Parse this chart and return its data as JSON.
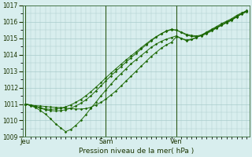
{
  "bg_color": "#d8eeee",
  "grid_color": "#aacccc",
  "line_color": "#1a6600",
  "marker_color": "#1a6600",
  "xlabel": "Pression niveau de la mer( hPa )",
  "ylim": [
    1009,
    1017
  ],
  "yticks": [
    1009,
    1010,
    1011,
    1012,
    1013,
    1014,
    1015,
    1016,
    1017
  ],
  "xtick_labels": [
    "Jeu",
    "Sam",
    "Ven"
  ],
  "xtick_positions": [
    0,
    16,
    30
  ],
  "vline_positions": [
    0,
    16,
    30
  ],
  "n_points": 45,
  "series": [
    [
      1011.0,
      1010.95,
      1010.9,
      1010.88,
      1010.85,
      1010.82,
      1010.8,
      1010.78,
      1010.75,
      1010.72,
      1010.7,
      1010.7,
      1010.72,
      1010.8,
      1010.95,
      1011.1,
      1011.3,
      1011.55,
      1011.8,
      1012.1,
      1012.4,
      1012.7,
      1013.0,
      1013.3,
      1013.6,
      1013.9,
      1014.15,
      1014.4,
      1014.6,
      1014.75,
      1015.1,
      1015.0,
      1014.9,
      1014.95,
      1015.05,
      1015.2,
      1015.35,
      1015.5,
      1015.65,
      1015.8,
      1015.95,
      1016.1,
      1016.3,
      1016.5,
      1016.7
    ],
    [
      1011.0,
      1010.9,
      1010.78,
      1010.6,
      1010.38,
      1010.1,
      1009.8,
      1009.55,
      1009.32,
      1009.45,
      1009.7,
      1010.0,
      1010.35,
      1010.75,
      1011.1,
      1011.5,
      1011.85,
      1012.2,
      1012.55,
      1012.85,
      1013.15,
      1013.45,
      1013.7,
      1013.95,
      1014.2,
      1014.45,
      1014.65,
      1014.82,
      1014.95,
      1015.05,
      1015.15,
      1015.0,
      1014.85,
      1014.92,
      1015.05,
      1015.2,
      1015.38,
      1015.55,
      1015.72,
      1015.9,
      1016.05,
      1016.2,
      1016.4,
      1016.55,
      1016.68
    ],
    [
      1011.0,
      1010.92,
      1010.83,
      1010.74,
      1010.65,
      1010.6,
      1010.58,
      1010.6,
      1010.65,
      1010.75,
      1010.88,
      1011.05,
      1011.25,
      1011.5,
      1011.8,
      1012.1,
      1012.42,
      1012.72,
      1013.0,
      1013.28,
      1013.55,
      1013.82,
      1014.08,
      1014.35,
      1014.6,
      1014.85,
      1015.08,
      1015.28,
      1015.45,
      1015.55,
      1015.5,
      1015.35,
      1015.2,
      1015.12,
      1015.1,
      1015.15,
      1015.28,
      1015.45,
      1015.62,
      1015.8,
      1015.97,
      1016.12,
      1016.32,
      1016.48,
      1016.62
    ],
    [
      1011.0,
      1010.93,
      1010.86,
      1010.78,
      1010.7,
      1010.68,
      1010.7,
      1010.75,
      1010.83,
      1010.95,
      1011.1,
      1011.28,
      1011.5,
      1011.75,
      1012.02,
      1012.3,
      1012.6,
      1012.88,
      1013.15,
      1013.42,
      1013.68,
      1013.93,
      1014.18,
      1014.43,
      1014.67,
      1014.9,
      1015.1,
      1015.28,
      1015.43,
      1015.52,
      1015.5,
      1015.38,
      1015.25,
      1015.18,
      1015.15,
      1015.2,
      1015.33,
      1015.5,
      1015.67,
      1015.84,
      1016.0,
      1016.15,
      1016.35,
      1016.5,
      1016.65
    ]
  ]
}
